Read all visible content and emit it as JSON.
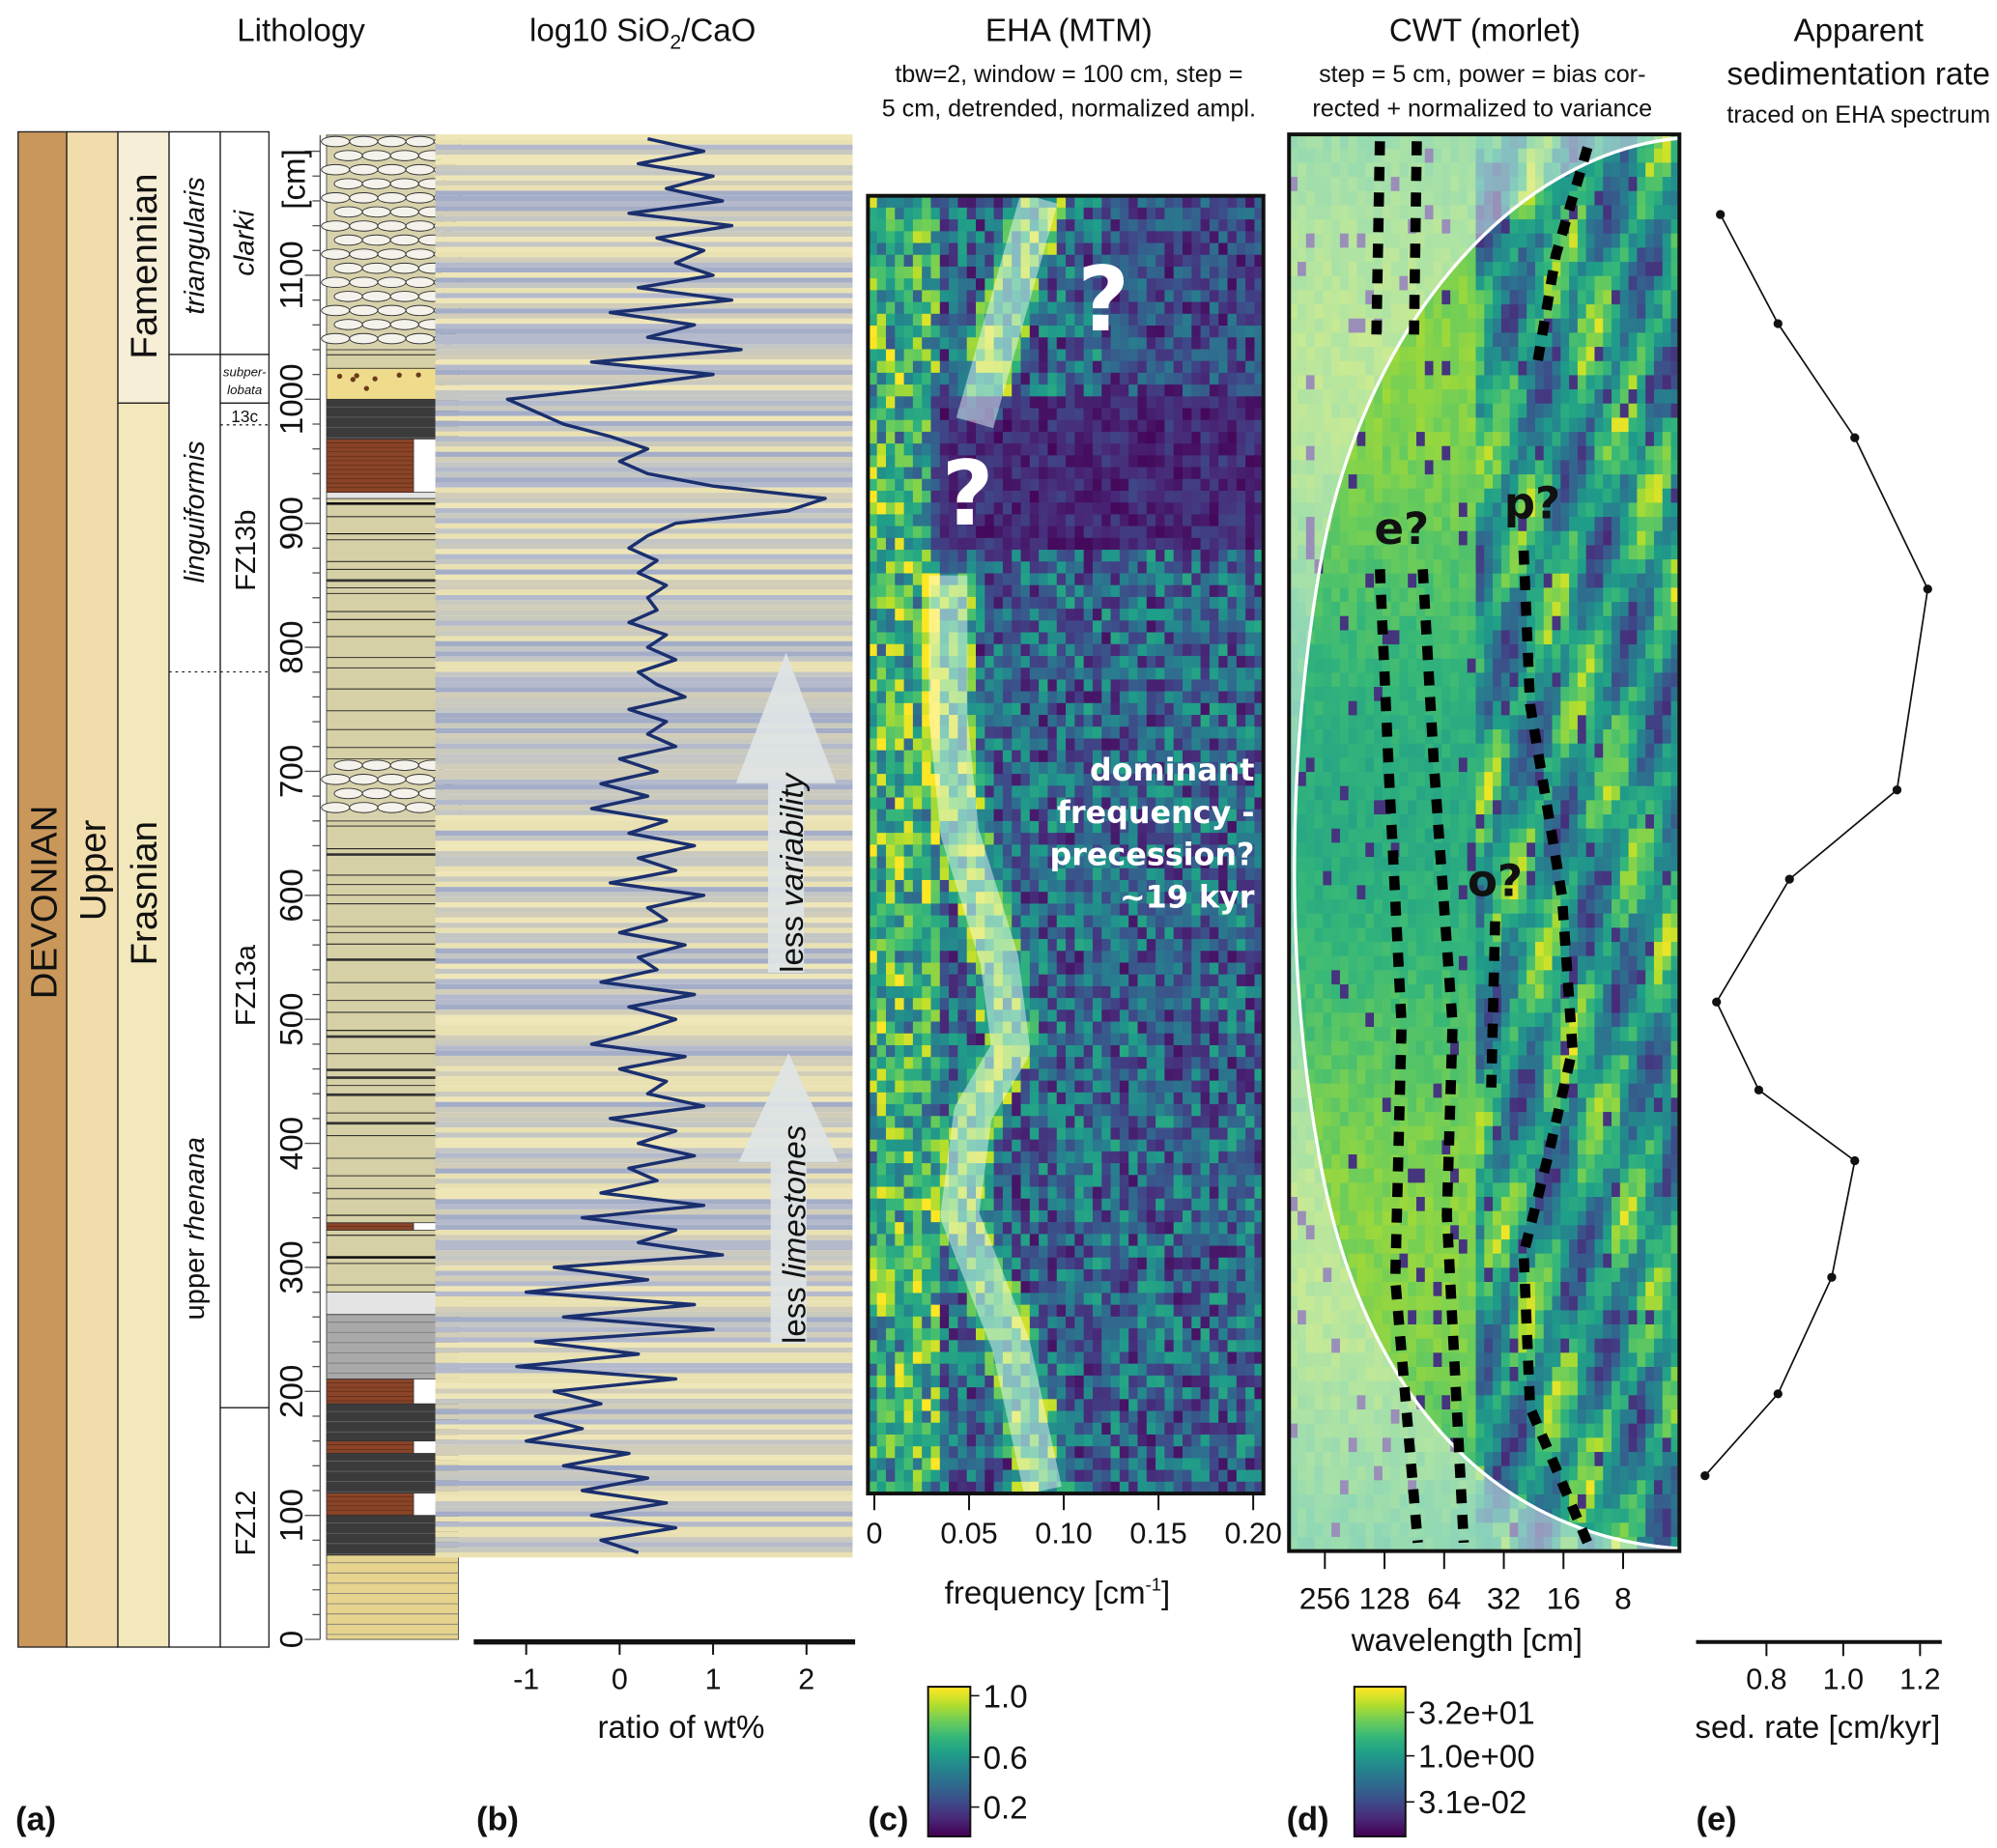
{
  "panels": {
    "a": {
      "label": "(a)",
      "title": "Lithology",
      "system": "DEVONIAN",
      "series": "Upper",
      "stages": [
        "Famennian",
        "Frasnian"
      ],
      "conodont_zones": [
        "triangularis",
        "linguiformis",
        "upper rhenana"
      ],
      "upper_rhenana_parts": [
        "upper ",
        "rhenana"
      ],
      "fz_zones": [
        "clarki",
        "subper-",
        "lobata",
        "13c",
        "FZ13b",
        "FZ13a",
        "FZ12"
      ],
      "depth_axis": {
        "unit_label": "[cm]",
        "ticks": [
          0,
          100,
          200,
          300,
          400,
          500,
          600,
          700,
          800,
          900,
          1000,
          1100
        ]
      },
      "beds": [
        {
          "from": 0,
          "to": 68,
          "type": "yellow-limestone"
        },
        {
          "from": 68,
          "to": 100,
          "type": "dark-limestone"
        },
        {
          "from": 100,
          "to": 118,
          "type": "red-shale"
        },
        {
          "from": 118,
          "to": 150,
          "type": "dark-limestone"
        },
        {
          "from": 150,
          "to": 160,
          "type": "red-shale"
        },
        {
          "from": 160,
          "to": 190,
          "type": "dark-limestone"
        },
        {
          "from": 190,
          "to": 210,
          "type": "red-shale"
        },
        {
          "from": 210,
          "to": 262,
          "type": "grey-limestone"
        },
        {
          "from": 262,
          "to": 280,
          "type": "light-limestone"
        },
        {
          "from": 280,
          "to": 330,
          "type": "tan-limestone"
        },
        {
          "from": 330,
          "to": 336,
          "type": "red-shale"
        },
        {
          "from": 336,
          "to": 660,
          "type": "tan-limestone"
        },
        {
          "from": 660,
          "to": 710,
          "type": "nodular-limestone"
        },
        {
          "from": 710,
          "to": 920,
          "type": "tan-limestone"
        },
        {
          "from": 920,
          "to": 925,
          "type": "light-limestone"
        },
        {
          "from": 925,
          "to": 968,
          "type": "red-shale"
        },
        {
          "from": 968,
          "to": 1000,
          "type": "dark-limestone"
        },
        {
          "from": 1000,
          "to": 1025,
          "type": "sandy-limestone"
        },
        {
          "from": 1025,
          "to": 1040,
          "type": "tan-limestone"
        },
        {
          "from": 1040,
          "to": 1213,
          "type": "nodular-limestone"
        }
      ]
    },
    "b": {
      "label": "(b)",
      "title_pre": "log10 SiO",
      "title_sub": "2",
      "title_post": "/CaO",
      "xlabel": "ratio of wt%",
      "xticks": [
        "-1",
        "0",
        "1",
        "2"
      ],
      "arrow1": [
        "less ",
        "variability"
      ],
      "arrow2": [
        "less ",
        "limestones"
      ]
    },
    "c": {
      "label": "(c)",
      "title": "EHA (MTM)",
      "subtitle": [
        "tbw=2, window = 100 cm, step =",
        "5 cm, detrended, normalized ampl."
      ],
      "xlabel_pre": "frequency [cm",
      "xlabel_sup": "-1",
      "xlabel_post": "]",
      "xticks": [
        "0",
        "0.05",
        "0.10",
        "0.15",
        "0.20"
      ],
      "question_marks": [
        "?",
        "?"
      ],
      "annotation": [
        "dominant",
        "frequency -",
        "precession?",
        "~19 kyr"
      ],
      "colorbar_ticks": [
        "1.0",
        "0.6",
        "0.2"
      ]
    },
    "d": {
      "label": "(d)",
      "title": "CWT (morlet)",
      "subtitle": [
        "step = 5 cm, power = bias cor-",
        "rected + normalized to variance"
      ],
      "xlabel": "wavelength [cm]",
      "xticks": [
        "256",
        "128",
        "64",
        "32",
        "16",
        "8"
      ],
      "ridge_labels": {
        "e": "e?",
        "p": "p?",
        "o": "o?"
      },
      "colorbar_ticks": [
        "3.2e+01",
        "1.0e+00",
        "3.1e-02"
      ]
    },
    "e": {
      "label": "(e)",
      "title": [
        "Apparent",
        "sedimentation rate"
      ],
      "subtitle": "traced on EHA spectrum",
      "xlabel": "sed. rate [cm/kyr]",
      "xticks": [
        "0.8",
        "1.0",
        "1.2"
      ]
    }
  },
  "chart_data": [
    {
      "type": "line",
      "panel": "b",
      "title": "log10 SiO2/CaO",
      "xlabel": "ratio of wt%",
      "ylabel": "depth [cm]",
      "xlim": [
        -1.5,
        2.5
      ],
      "ylim": [
        0,
        1213
      ],
      "depth_start": 1210,
      "depth_step": -10,
      "values": [
        0.3,
        0.9,
        0.2,
        1.0,
        0.5,
        1.1,
        0.1,
        1.2,
        0.4,
        0.9,
        0.6,
        1.0,
        0.2,
        1.2,
        -0.1,
        0.8,
        0.3,
        1.3,
        -0.3,
        1.0,
        0.0,
        -1.2,
        -0.9,
        -0.6,
        -0.1,
        0.3,
        0.0,
        0.3,
        1.0,
        2.2,
        1.8,
        0.6,
        0.3,
        0.1,
        0.4,
        0.2,
        0.5,
        0.3,
        0.4,
        0.1,
        0.5,
        0.3,
        0.6,
        0.2,
        0.4,
        0.7,
        0.1,
        0.5,
        0.3,
        0.6,
        0.0,
        0.4,
        -0.2,
        0.3,
        -0.3,
        0.5,
        0.1,
        0.8,
        0.2,
        0.6,
        -0.1,
        0.9,
        0.3,
        0.5,
        0.0,
        0.7,
        0.2,
        0.4,
        -0.2,
        0.8,
        0.1,
        0.6,
        0.2,
        -0.3,
        0.7,
        0.0,
        0.5,
        0.3,
        0.9,
        -0.1,
        0.6,
        0.2,
        0.8,
        0.1,
        0.4,
        -0.2,
        0.9,
        -0.4,
        0.6,
        0.2,
        1.1,
        -0.7,
        0.3,
        -1.0,
        0.8,
        -0.6,
        1.0,
        -0.9,
        0.2,
        -1.1,
        0.6,
        -0.7,
        -0.2,
        -0.9,
        -0.4,
        -1.0,
        0.1,
        -0.6,
        0.3,
        -0.4,
        0.5,
        -0.3,
        0.6,
        -0.2,
        0.2
      ],
      "line_color": "#1a2f6e"
    },
    {
      "type": "heatmap",
      "panel": "c",
      "title": "EHA (MTM)",
      "xlabel": "frequency [cm-1]",
      "xlim": [
        0,
        0.21
      ],
      "ylim": [
        117,
        1164
      ],
      "colorscale": "viridis",
      "clim": [
        0,
        1
      ],
      "traced_band": [
        {
          "segment": "upper",
          "points": [
            {
              "depth": 981,
              "freq": 0.053
            },
            {
              "depth": 1162,
              "freq": 0.087
            }
          ]
        },
        {
          "segment": "lower",
          "points": [
            {
              "depth": 120,
              "freq": 0.089
            },
            {
              "depth": 238,
              "freq": 0.072
            },
            {
              "depth": 342,
              "freq": 0.045
            },
            {
              "depth": 424,
              "freq": 0.052
            },
            {
              "depth": 476,
              "freq": 0.072
            },
            {
              "depth": 548,
              "freq": 0.066
            },
            {
              "depth": 651,
              "freq": 0.045
            },
            {
              "depth": 744,
              "freq": 0.039
            },
            {
              "depth": 858,
              "freq": 0.039
            }
          ]
        }
      ]
    },
    {
      "type": "heatmap",
      "panel": "d",
      "title": "CWT (morlet)",
      "xlabel": "wavelength [cm]",
      "xscale": "log2",
      "xlim": [
        388,
        4.2
      ],
      "ylim": [
        72,
        1213
      ],
      "colorscale": "viridis",
      "ridges": [
        {
          "name": "e-left-upper",
          "points": [
            {
              "depth": 1208,
              "wavelength": 135
            },
            {
              "depth": 1043,
              "wavelength": 141
            }
          ]
        },
        {
          "name": "e-right-upper",
          "points": [
            {
              "depth": 1208,
              "wavelength": 88
            },
            {
              "depth": 1043,
              "wavelength": 91
            }
          ]
        },
        {
          "name": "p-upper",
          "points": [
            {
              "depth": 1203,
              "wavelength": 12.1
            },
            {
              "depth": 1116,
              "wavelength": 17.5
            },
            {
              "depth": 1023,
              "wavelength": 22
            }
          ]
        },
        {
          "name": "e-left",
          "points": [
            {
              "depth": 863,
              "wavelength": 135
            },
            {
              "depth": 703,
              "wavelength": 122
            },
            {
              "depth": 496,
              "wavelength": 105
            },
            {
              "depth": 290,
              "wavelength": 113
            },
            {
              "depth": 78,
              "wavelength": 87
            }
          ]
        },
        {
          "name": "e-right",
          "points": [
            {
              "depth": 863,
              "wavelength": 82
            },
            {
              "depth": 703,
              "wavelength": 72
            },
            {
              "depth": 496,
              "wavelength": 58
            },
            {
              "depth": 342,
              "wavelength": 62
            },
            {
              "depth": 78,
              "wavelength": 51
            }
          ]
        },
        {
          "name": "p",
          "points": [
            {
              "depth": 878,
              "wavelength": 25.4
            },
            {
              "depth": 754,
              "wavelength": 23.6
            },
            {
              "depth": 600,
              "wavelength": 16.3
            },
            {
              "depth": 476,
              "wavelength": 14.4
            },
            {
              "depth": 393,
              "wavelength": 18.9
            },
            {
              "depth": 311,
              "wavelength": 25.4
            },
            {
              "depth": 187,
              "wavelength": 23.6
            },
            {
              "depth": 78,
              "wavelength": 12.1
            }
          ]
        },
        {
          "name": "o",
          "points": [
            {
              "depth": 579,
              "wavelength": 35.4
            },
            {
              "depth": 445,
              "wavelength": 37
            }
          ]
        }
      ]
    },
    {
      "type": "line",
      "panel": "e",
      "title": "Apparent sedimentation rate",
      "xlabel": "sed. rate [cm/kyr]",
      "xlim": [
        0.62,
        1.26
      ],
      "points": [
        {
          "depth": 1149,
          "rate": 0.68
        },
        {
          "depth": 1061,
          "rate": 0.83
        },
        {
          "depth": 969,
          "rate": 1.03
        },
        {
          "depth": 847,
          "rate": 1.22
        },
        {
          "depth": 685,
          "rate": 1.14
        },
        {
          "depth": 613,
          "rate": 0.86
        },
        {
          "depth": 514,
          "rate": 0.67
        },
        {
          "depth": 443,
          "rate": 0.78
        },
        {
          "depth": 386,
          "rate": 1.03
        },
        {
          "depth": 292,
          "rate": 0.97
        },
        {
          "depth": 198,
          "rate": 0.83
        },
        {
          "depth": 132,
          "rate": 0.64
        }
      ]
    }
  ],
  "colors": {
    "devonian": "#c9975a",
    "upper": "#f2dcab",
    "frasnian": "#f3e8bb",
    "famennian": "#f6eed6",
    "curve": "#1a2f6e"
  }
}
